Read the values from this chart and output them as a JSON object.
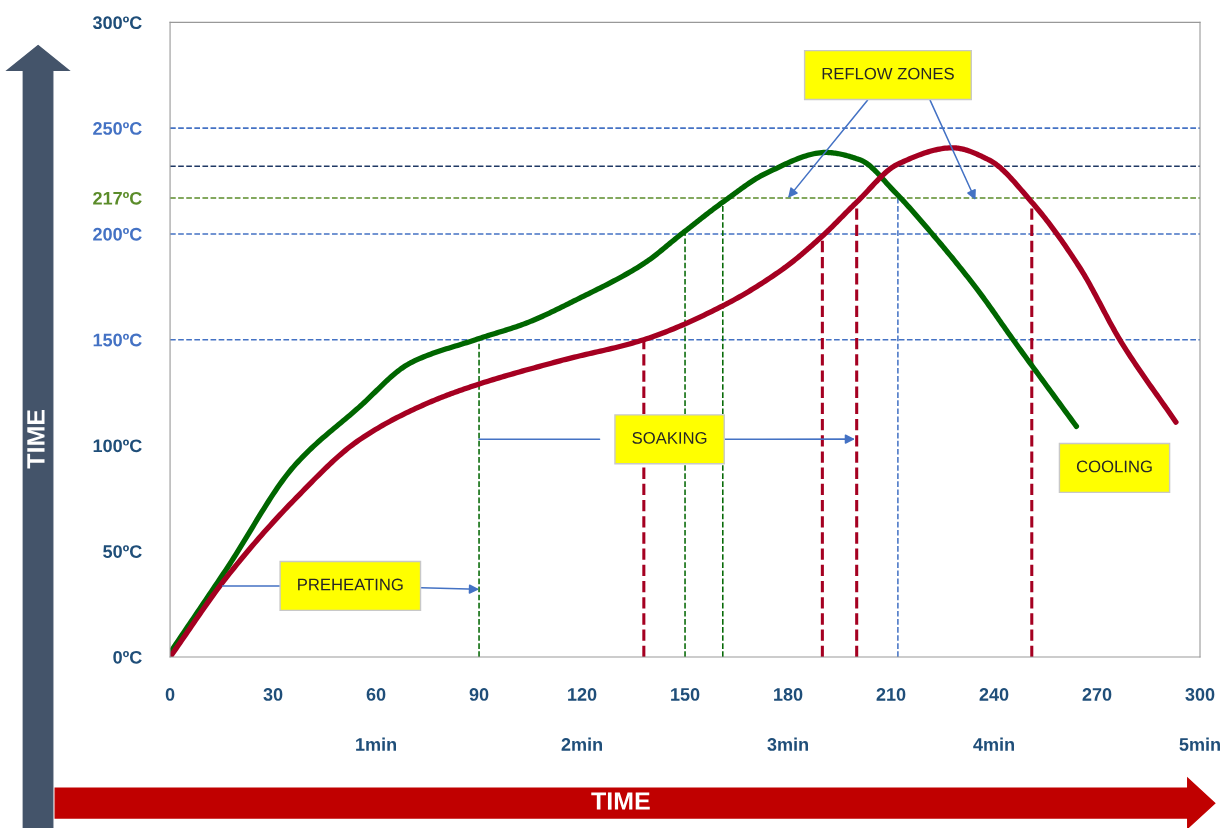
{
  "chart_data": {
    "type": "line",
    "xlabel": "TIME",
    "ylabel": "TIME",
    "xlim": [
      0,
      300
    ],
    "xticks": [
      0,
      30,
      60,
      90,
      120,
      150,
      180,
      210,
      240,
      270,
      300
    ],
    "x2lim": [
      0,
      5
    ],
    "x2ticks": [
      {
        "value": 1,
        "label": "1min"
      },
      {
        "value": 2,
        "label": "2min"
      },
      {
        "value": 3,
        "label": "3min"
      },
      {
        "value": 4,
        "label": "4min"
      },
      {
        "value": 5,
        "label": "5min"
      }
    ],
    "ylim": [
      0,
      300
    ],
    "yticks": [
      {
        "value": 0,
        "label": "0ºC"
      },
      {
        "value": 50,
        "label": "50ºC"
      },
      {
        "value": 100,
        "label": "100ºC"
      },
      {
        "value": 150,
        "label": "150ºC"
      },
      {
        "value": 200,
        "label": "200ºC"
      },
      {
        "value": 217,
        "label": "217ºC"
      },
      {
        "value": 250,
        "label": "250ºC"
      },
      {
        "value": 300,
        "label": "300ºC"
      }
    ],
    "series": [
      {
        "color": "#006600",
        "x": [
          0,
          16.6,
          36,
          55,
          70,
          89,
          104,
          118.5,
          138,
          149,
          161,
          174,
          191,
          201,
          211,
          222,
          235,
          246,
          264
        ],
        "values": [
          2,
          42,
          90,
          118,
          139,
          150,
          158,
          169,
          186,
          200,
          215,
          229,
          238.5,
          235,
          220,
          200,
          174,
          149,
          109
        ]
      },
      {
        "color": "#a50021",
        "x": [
          0,
          16.6,
          36,
          55,
          75,
          89,
          113.6,
          138,
          161,
          179,
          190,
          200,
          212,
          228,
          238.5,
          251,
          265,
          277,
          293
        ],
        "values": [
          0,
          38,
          74,
          102.5,
          120,
          128.5,
          140,
          150,
          166,
          184,
          199,
          215,
          233,
          240.7,
          235,
          215,
          184,
          149,
          111
        ]
      }
    ],
    "ref_lines": [
      {
        "axis": "y",
        "value": 250,
        "color": "#4472c4",
        "line_style": "dashed"
      },
      {
        "axis": "y",
        "value": 232,
        "color": "#1f3864",
        "line_style": "dashed"
      },
      {
        "axis": "y",
        "value": 217,
        "color": "#5b8c2a",
        "line_style": "dashed"
      },
      {
        "axis": "y",
        "value": 200,
        "color": "#4472c4",
        "line_style": "dashed"
      },
      {
        "axis": "y",
        "value": 150,
        "color": "#4472c4",
        "line_style": "dashed"
      },
      {
        "axis": "x",
        "value": 90,
        "color": "#006600",
        "line_style": "dashed"
      },
      {
        "axis": "x",
        "value": 150,
        "color": "#006600",
        "line_style": "dashed"
      },
      {
        "axis": "x",
        "value": 161,
        "color": "#006600",
        "line_style": "dashed"
      },
      {
        "axis": "x",
        "value": 138,
        "color": "#a50021",
        "line_style": "dashed"
      },
      {
        "axis": "x",
        "value": 190,
        "color": "#a50021",
        "line_style": "dashed"
      },
      {
        "axis": "x",
        "value": 200,
        "color": "#a50021",
        "line_style": "dashed"
      },
      {
        "axis": "x",
        "value": 251,
        "color": "#a50021",
        "line_style": "dashed"
      },
      {
        "axis": "x",
        "value": 212,
        "color": "#4472c4",
        "line_style": "dashed"
      }
    ],
    "annotations": [
      {
        "text": "PREHEATING",
        "x": 90,
        "y": 32
      },
      {
        "text": "SOAKING",
        "x": 199.5,
        "y": 103
      },
      {
        "text": "REFLOW ZONES",
        "x": 180,
        "y": 217
      },
      "COOLING"
    ],
    "line_style": "solid",
    "grid": false,
    "legend": false
  }
}
